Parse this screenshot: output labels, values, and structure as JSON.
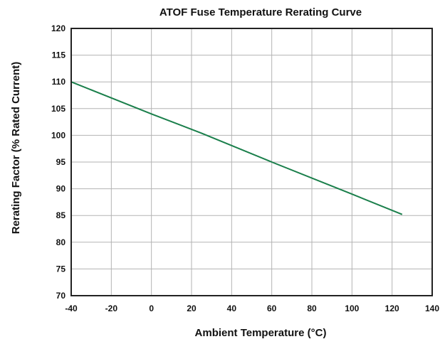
{
  "chart_data": {
    "type": "line",
    "title": "ATOF Fuse Temperature Rerating Curve",
    "xlabel": "Ambient Temperature (°C)",
    "ylabel": "Rerating Factor (% Rated Current)",
    "xlim": [
      -40,
      140
    ],
    "ylim": [
      70,
      120
    ],
    "xticks": [
      -40,
      -20,
      0,
      20,
      40,
      60,
      80,
      100,
      120,
      140
    ],
    "yticks": [
      70,
      75,
      80,
      85,
      90,
      95,
      100,
      105,
      110,
      115,
      120
    ],
    "grid": true,
    "legend": "none",
    "series": [
      {
        "color": "#1a7f4b",
        "x": [
          -40,
          0,
          25,
          60,
          100,
          125
        ],
        "y": [
          110,
          104,
          100.4,
          95,
          89,
          85.2
        ]
      }
    ]
  }
}
